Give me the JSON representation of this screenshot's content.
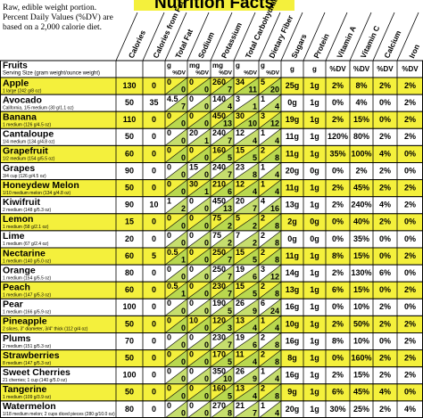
{
  "header": {
    "title": "Nutrition Facts",
    "note": [
      "Raw, edible weight portion.",
      "Percent Daily Values (%DV) are",
      "based on a 2,000 calorie diet."
    ]
  },
  "table": {
    "label_header": "Fruits",
    "serving_header": "Serving Size (gram weight/ounce weight)",
    "columns": [
      {
        "name": "Calories"
      },
      {
        "name": "Calories from Fat"
      },
      {
        "name": "Total Fat",
        "units": [
          "g",
          "%DV"
        ]
      },
      {
        "name": "Sodium",
        "units": [
          "mg",
          "%DV"
        ]
      },
      {
        "name": "Potassium",
        "units": [
          "mg",
          "%DV"
        ]
      },
      {
        "name": "Total Carbohydrate",
        "units": [
          "g",
          "%DV"
        ]
      },
      {
        "name": "Dietary Fiber",
        "units": [
          "g",
          "%DV"
        ]
      },
      {
        "name": "Sugars",
        "units": [
          "g"
        ]
      },
      {
        "name": "Protein",
        "units": [
          "g"
        ]
      },
      {
        "name": "Vitamin A",
        "units": [
          "%DV"
        ]
      },
      {
        "name": "Vitamin C",
        "units": [
          "%DV"
        ]
      },
      {
        "name": "Calcium",
        "units": [
          "%DV"
        ]
      },
      {
        "name": "Iron",
        "units": [
          "%DV"
        ]
      }
    ],
    "rows": [
      {
        "name": "Apple",
        "serving": "1 large (242 g/8 oz)",
        "cells": [
          "130",
          "0",
          [
            "0",
            "0"
          ],
          [
            "0",
            "0"
          ],
          [
            "260",
            "7"
          ],
          [
            "34",
            "11"
          ],
          [
            "5",
            "20"
          ],
          "25g",
          "1g",
          "2%",
          "8%",
          "2%",
          "2%"
        ]
      },
      {
        "name": "Avocado",
        "serving": "California, 1/5 medium (30 g/1.1 oz)",
        "cells": [
          "50",
          "35",
          [
            "4.5",
            "7"
          ],
          [
            "0",
            "0"
          ],
          [
            "140",
            "4"
          ],
          [
            "3",
            "1"
          ],
          [
            "1",
            "4"
          ],
          "0g",
          "1g",
          "0%",
          "4%",
          "0%",
          "2%"
        ]
      },
      {
        "name": "Banana",
        "serving": "1 medium (126 g/4.5 oz)",
        "cells": [
          "110",
          "0",
          [
            "0",
            "0"
          ],
          [
            "0",
            "0"
          ],
          [
            "450",
            "13"
          ],
          [
            "30",
            "10"
          ],
          [
            "3",
            "12"
          ],
          "19g",
          "1g",
          "2%",
          "15%",
          "0%",
          "2%"
        ]
      },
      {
        "name": "Cantaloupe",
        "serving": "1/4 medium (134 g/4.8 oz)",
        "cells": [
          "50",
          "0",
          [
            "0",
            "0"
          ],
          [
            "20",
            "1"
          ],
          [
            "240",
            "7"
          ],
          [
            "12",
            "4"
          ],
          [
            "1",
            "4"
          ],
          "11g",
          "1g",
          "120%",
          "80%",
          "2%",
          "2%"
        ]
      },
      {
        "name": "Grapefruit",
        "serving": "1/2 medium (154 g/5.5 oz)",
        "cells": [
          "60",
          "0",
          [
            "0",
            "0"
          ],
          [
            "0",
            "0"
          ],
          [
            "160",
            "5"
          ],
          [
            "15",
            "5"
          ],
          [
            "2",
            "8"
          ],
          "11g",
          "1g",
          "35%",
          "100%",
          "4%",
          "0%"
        ]
      },
      {
        "name": "Grapes",
        "serving": "3/4 cup (126 g/4.5 oz)",
        "cells": [
          "90",
          "0",
          [
            "0",
            "0"
          ],
          [
            "15",
            "0"
          ],
          [
            "240",
            "7"
          ],
          [
            "23",
            "8"
          ],
          [
            "1",
            "4"
          ],
          "20g",
          "0g",
          "0%",
          "2%",
          "2%",
          "0%"
        ]
      },
      {
        "name": "Honeydew Melon",
        "serving": "1/10 medium melon (134 g/4.8 oz)",
        "cells": [
          "50",
          "0",
          [
            "0",
            "0"
          ],
          [
            "30",
            "1"
          ],
          [
            "210",
            "6"
          ],
          [
            "12",
            "4"
          ],
          [
            "1",
            "4"
          ],
          "11g",
          "1g",
          "2%",
          "45%",
          "2%",
          "2%"
        ]
      },
      {
        "name": "Kiwifruit",
        "serving": "2 medium (148 g/5.3 oz)",
        "cells": [
          "90",
          "10",
          [
            "1",
            "2"
          ],
          [
            "0",
            "0"
          ],
          [
            "450",
            "13"
          ],
          [
            "20",
            "7"
          ],
          [
            "4",
            "16"
          ],
          "13g",
          "1g",
          "2%",
          "240%",
          "4%",
          "2%"
        ]
      },
      {
        "name": "Lemon",
        "serving": "1 medium (58 g/2.1 oz)",
        "cells": [
          "15",
          "0",
          [
            "0",
            "0"
          ],
          [
            "0",
            "0"
          ],
          [
            "75",
            "2"
          ],
          [
            "5",
            "2"
          ],
          [
            "2",
            "8"
          ],
          "2g",
          "0g",
          "0%",
          "40%",
          "2%",
          "0%"
        ]
      },
      {
        "name": "Lime",
        "serving": "1 medium (67 g/2.4 oz)",
        "cells": [
          "20",
          "0",
          [
            "0",
            "0"
          ],
          [
            "0",
            "0"
          ],
          [
            "75",
            "2"
          ],
          [
            "7",
            "2"
          ],
          [
            "2",
            "8"
          ],
          "0g",
          "0g",
          "0%",
          "35%",
          "0%",
          "0%"
        ]
      },
      {
        "name": "Nectarine",
        "serving": "1 medium (140 g/5.0 oz)",
        "cells": [
          "60",
          "5",
          [
            "0.5",
            "1"
          ],
          [
            "0",
            "0"
          ],
          [
            "250",
            "7"
          ],
          [
            "15",
            "5"
          ],
          [
            "2",
            "8"
          ],
          "11g",
          "1g",
          "8%",
          "15%",
          "0%",
          "2%"
        ]
      },
      {
        "name": "Orange",
        "serving": "1 medium (154 g/5.5 oz)",
        "cells": [
          "80",
          "0",
          [
            "0",
            "0"
          ],
          [
            "0",
            "0"
          ],
          [
            "250",
            "7"
          ],
          [
            "19",
            "6"
          ],
          [
            "3",
            "12"
          ],
          "14g",
          "1g",
          "2%",
          "130%",
          "6%",
          "0%"
        ]
      },
      {
        "name": "Peach",
        "serving": "1 medium (147 g/5.3 oz)",
        "cells": [
          "60",
          "0",
          [
            "0.5",
            "1"
          ],
          [
            "0",
            "0"
          ],
          [
            "230",
            "7"
          ],
          [
            "15",
            "5"
          ],
          [
            "2",
            "8"
          ],
          "13g",
          "1g",
          "6%",
          "15%",
          "0%",
          "2%"
        ]
      },
      {
        "name": "Pear",
        "serving": "1 medium (166 g/5.9 oz)",
        "cells": [
          "100",
          "0",
          [
            "0",
            "0"
          ],
          [
            "0",
            "0"
          ],
          [
            "190",
            "5"
          ],
          [
            "26",
            "9"
          ],
          [
            "6",
            "24"
          ],
          "16g",
          "1g",
          "0%",
          "10%",
          "2%",
          "0%"
        ]
      },
      {
        "name": "Pineapple",
        "serving": "2 slices, 3\" diameter, 3/4\" thick (112 g/4 oz)",
        "cells": [
          "50",
          "0",
          [
            "0",
            "0"
          ],
          [
            "10",
            "0"
          ],
          [
            "120",
            "3"
          ],
          [
            "13",
            "4"
          ],
          [
            "1",
            "4"
          ],
          "10g",
          "1g",
          "2%",
          "50%",
          "2%",
          "2%"
        ]
      },
      {
        "name": "Plums",
        "serving": "2 medium (151 g/5.3 oz)",
        "cells": [
          "70",
          "0",
          [
            "0",
            "0"
          ],
          [
            "0",
            "0"
          ],
          [
            "230",
            "7"
          ],
          [
            "19",
            "6"
          ],
          [
            "2",
            "8"
          ],
          "16g",
          "1g",
          "8%",
          "10%",
          "0%",
          "2%"
        ]
      },
      {
        "name": "Strawberries",
        "serving": "8 medium (147 g/5.3 oz)",
        "cells": [
          "50",
          "0",
          [
            "0",
            "0"
          ],
          [
            "0",
            "0"
          ],
          [
            "170",
            "5"
          ],
          [
            "11",
            "4"
          ],
          [
            "2",
            "8"
          ],
          "8g",
          "1g",
          "0%",
          "160%",
          "2%",
          "2%"
        ]
      },
      {
        "name": "Sweet Cherries",
        "serving": "21 cherries; 1 cup (140 g/5.0 oz)",
        "cells": [
          "100",
          "0",
          [
            "0",
            "0"
          ],
          [
            "0",
            "0"
          ],
          [
            "350",
            "10"
          ],
          [
            "26",
            "9"
          ],
          [
            "1",
            "4"
          ],
          "16g",
          "1g",
          "2%",
          "15%",
          "2%",
          "2%"
        ]
      },
      {
        "name": "Tangerine",
        "serving": "1 medium (109 g/3.9 oz)",
        "cells": [
          "50",
          "0",
          [
            "0",
            "0"
          ],
          [
            "0",
            "0"
          ],
          [
            "160",
            "5"
          ],
          [
            "13",
            "4"
          ],
          [
            "2",
            "8"
          ],
          "9g",
          "1g",
          "6%",
          "45%",
          "4%",
          "0%"
        ]
      },
      {
        "name": "Watermelon",
        "serving": "1/18 medium melon; 2 cups diced pieces (280 g/10.0 oz)",
        "cells": [
          "80",
          "0",
          [
            "0",
            "0"
          ],
          [
            "0",
            "0"
          ],
          [
            "270",
            "8"
          ],
          [
            "21",
            "7"
          ],
          [
            "1",
            "4"
          ],
          "20g",
          "1g",
          "30%",
          "25%",
          "2%",
          "4%"
        ]
      }
    ]
  }
}
